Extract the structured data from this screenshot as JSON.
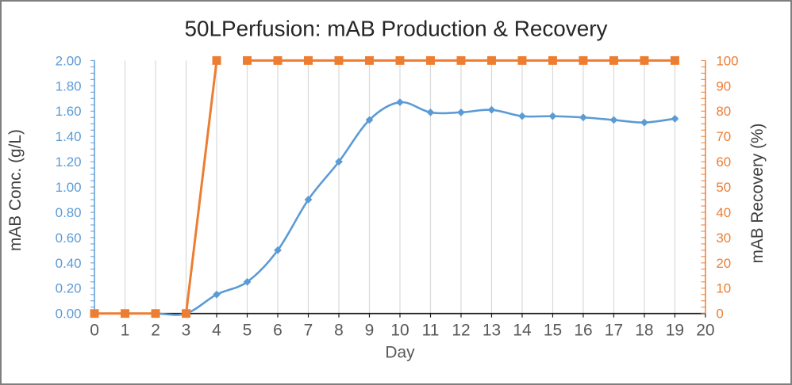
{
  "chart_data": {
    "type": "line",
    "title": "50LPerfusion: mAB Production & Recovery",
    "x": [
      0,
      1,
      2,
      3,
      4,
      5,
      6,
      7,
      8,
      9,
      10,
      11,
      12,
      13,
      14,
      15,
      16,
      17,
      18,
      19
    ],
    "x_axis": {
      "label": "Day",
      "min": 0,
      "max": 20,
      "step": 1,
      "tick_label_color": "#595959",
      "line_color": "#1a1a1a"
    },
    "left_axis": {
      "label": "mAB Conc. (g/L)",
      "min": 0,
      "max": 2,
      "step": 0.2,
      "decimals": 2,
      "minor_step": 0.05,
      "color": "#5B9BD5"
    },
    "right_axis": {
      "label": "mAB Recovery (%)",
      "min": 0,
      "max": 100,
      "step": 10,
      "decimals": 0,
      "minor_step": 2.5,
      "color": "#ED7D31"
    },
    "grid": {
      "vertical": true,
      "color": "#D9D9D9"
    },
    "legend": "none",
    "series": [
      {
        "name": "mAB Conc. (g/L)",
        "axis": "left",
        "color": "#5B9BD5",
        "marker": "diamond",
        "smooth": true,
        "values": [
          0.0,
          0.0,
          0.0,
          0.0,
          0.15,
          0.25,
          0.5,
          0.9,
          1.2,
          1.53,
          1.67,
          1.59,
          1.59,
          1.61,
          1.56,
          1.56,
          1.55,
          1.53,
          1.51,
          1.54
        ]
      },
      {
        "name": "mAB Recovery (%)",
        "axis": "right",
        "color": "#ED7D31",
        "marker": "square",
        "smooth": false,
        "values": [
          0,
          0,
          0,
          0,
          100,
          100,
          100,
          100,
          100,
          100,
          100,
          100,
          100,
          100,
          100,
          100,
          100,
          100,
          100,
          100
        ],
        "line_breaks_after_index": [
          2,
          4
        ]
      }
    ]
  }
}
